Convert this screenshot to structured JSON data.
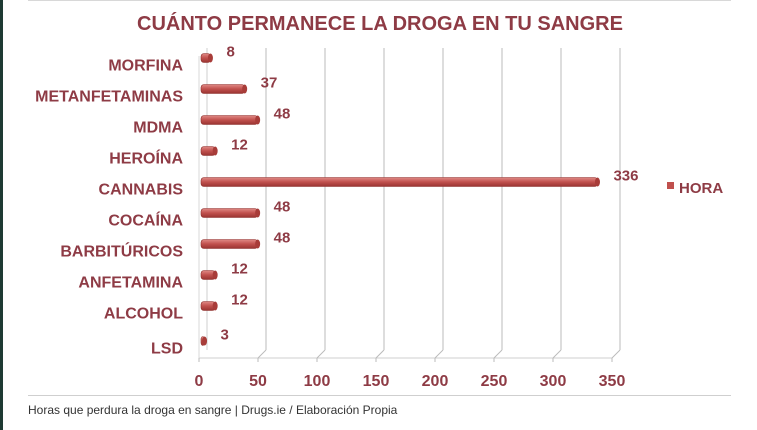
{
  "chart_data": {
    "type": "bar",
    "orientation": "horizontal",
    "title": "CUÁNTO PERMANECE LA DROGA EN TU SANGRE",
    "categories": [
      "MORFINA",
      "METANFETAMINAS",
      "MDMA",
      "HEROÍNA",
      "CANNABIS",
      "COCAÍNA",
      "BARBITÚRICOS",
      "ANFETAMINA",
      "ALCOHOL",
      "LSD"
    ],
    "series": [
      {
        "name": "HORA",
        "values": [
          8,
          37,
          48,
          12,
          336,
          48,
          48,
          12,
          12,
          3
        ],
        "color": "#c0504d"
      }
    ],
    "xlim": [
      0,
      350
    ],
    "xticks": [
      "0",
      "50",
      "100",
      "150",
      "200",
      "250",
      "300",
      "350"
    ],
    "grid": true,
    "legend": "right",
    "style": "3d"
  },
  "caption": "Horas que perdura la droga en sangre | Drugs.ie / Elaboración Propia",
  "colors": {
    "text": "#8e3b45",
    "bar": "#c0504d",
    "edge": "#1e3a33"
  }
}
